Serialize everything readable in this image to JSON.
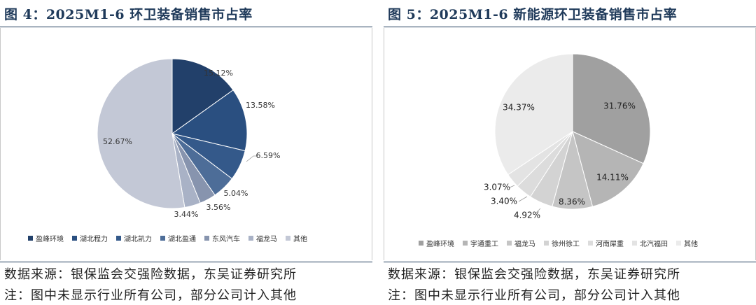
{
  "page": {
    "source_note": "数据来源：银保监会交强险数据，东吴证券研究所",
    "remark_note": "注：图中未显示行业所有公司，部分公司计入其他"
  },
  "charts": {
    "left": {
      "title": "图 4：2025M1-6 环卫装备销售市占率"
    },
    "right": {
      "title": "图 5：2025M1-6 新能源环卫装备销售市占率"
    }
  },
  "chart_data": [
    {
      "type": "pie",
      "title": "图 4：2025M1-6 环卫装备销售市占率",
      "unit": "%",
      "labels": [
        "盈峰环境",
        "湖北程力",
        "湖北凯力",
        "湖北盈通",
        "东风汽车",
        "福龙马",
        "其他"
      ],
      "values": [
        15.12,
        13.58,
        6.59,
        5.04,
        3.56,
        3.44,
        52.67
      ],
      "value_labels": [
        "15.12%",
        "13.58%",
        "6.59%",
        "5.04%",
        "3.56%",
        "3.44%",
        "52.67%"
      ],
      "colors": [
        "#22406a",
        "#2a4f80",
        "#34598a",
        "#4d6d98",
        "#8794ae",
        "#a9b2c6",
        "#c3c8d6"
      ],
      "legend": "bottom"
    },
    {
      "type": "pie",
      "title": "图 5：2025M1-6 新能源环卫装备销售市占率",
      "unit": "%",
      "labels": [
        "盈峰环境",
        "宇通重工",
        "福龙马",
        "徐州徐工",
        "河南犀重",
        "北汽福田",
        "其他"
      ],
      "values": [
        31.76,
        14.11,
        8.36,
        4.92,
        3.4,
        3.07,
        34.37
      ],
      "value_labels": [
        "31.76%",
        "14.11%",
        "8.36%",
        "4.92%",
        "3.40%",
        "3.07%",
        "34.37%"
      ],
      "colors": [
        "#a0a0a0",
        "#b5b5b5",
        "#c5c5c5",
        "#d3d3d3",
        "#dcdcdc",
        "#e3e3e3",
        "#ebebeb"
      ],
      "legend": "bottom"
    }
  ]
}
